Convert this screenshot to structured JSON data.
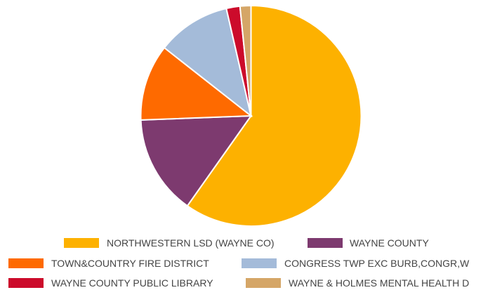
{
  "chart_data": {
    "type": "pie",
    "title": "",
    "slices": [
      {
        "label": "NORTHWESTERN LSD (WAYNE CO)",
        "value": 59.8,
        "color": "#FDB100"
      },
      {
        "label": "WAYNE COUNTY",
        "value": 14.6,
        "color": "#7D3A6F"
      },
      {
        "label": "TOWN&COUNTRY FIRE DISTRICT",
        "value": 11.2,
        "color": "#FE6A00"
      },
      {
        "label": "CONGRESS TWP EXC BURB,CONGR,W",
        "value": 10.8,
        "color": "#A4BBD9"
      },
      {
        "label": "WAYNE COUNTY PUBLIC LIBRARY",
        "value": 2.0,
        "color": "#CC0B2B"
      },
      {
        "label": "WAYNE & HOLMES MENTAL HEALTH D",
        "value": 1.6,
        "color": "#D5A667"
      }
    ],
    "start_angle_deg": 0,
    "direction": "clockwise",
    "legend_position": "bottom"
  }
}
